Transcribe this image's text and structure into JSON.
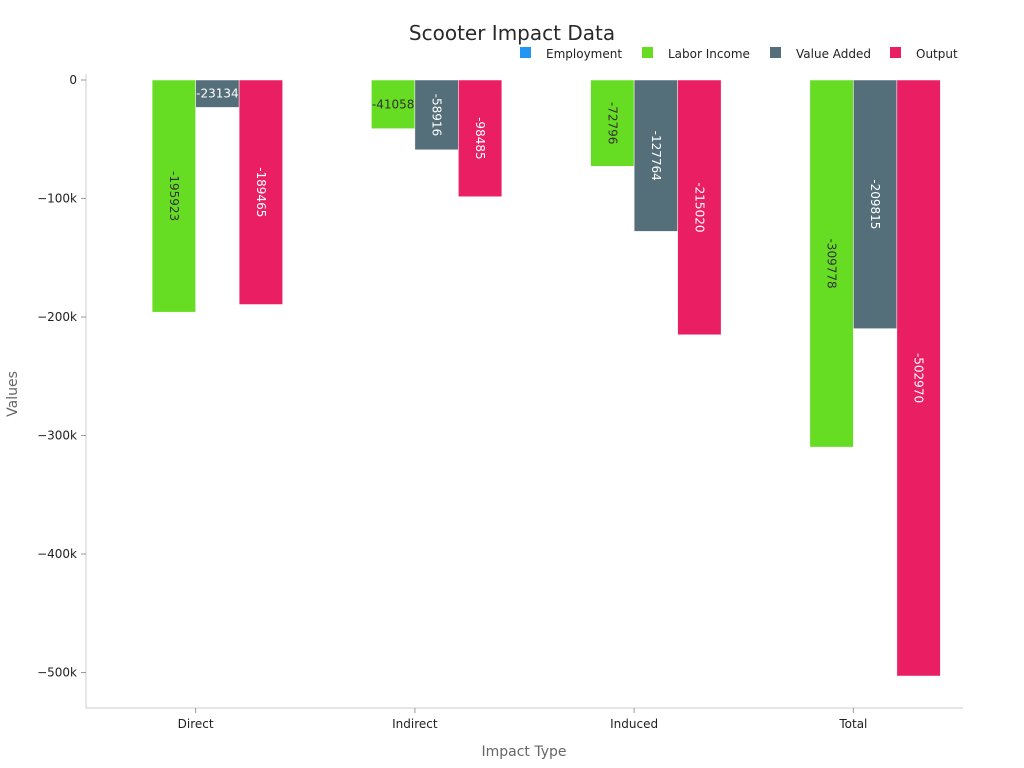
{
  "chart_data": {
    "type": "bar",
    "title": "Scooter Impact Data",
    "xlabel": "Impact Type",
    "ylabel": "Values",
    "categories": [
      "Direct",
      "Indirect",
      "Induced",
      "Total"
    ],
    "series": [
      {
        "name": "Employment",
        "color": "#2196f3",
        "values": [
          -1,
          -0.5,
          -0.8,
          -2.3
        ]
      },
      {
        "name": "Labor Income",
        "color": "#66dd22",
        "values": [
          -195923,
          -41058,
          -72796,
          -309778
        ]
      },
      {
        "name": "Value Added",
        "color": "#546e7a",
        "values": [
          -23134,
          -58916,
          -127764,
          -209815
        ]
      },
      {
        "name": "Output",
        "color": "#e91e63",
        "values": [
          -189465,
          -98485,
          -215020,
          -502970
        ]
      }
    ],
    "value_labels": {
      "Labor Income": [
        "-195923",
        "-41058",
        "-72796",
        "-309778"
      ],
      "Value Added": [
        "-23134",
        "-58916",
        "-127764",
        "-209815"
      ],
      "Output": [
        "-189465",
        "-98485",
        "-215020",
        "-502970"
      ]
    },
    "y_ticks": [
      0,
      -100000,
      -200000,
      -300000,
      -400000,
      -500000
    ],
    "y_tick_labels": [
      "0",
      "−100k",
      "−200k",
      "−300k",
      "−400k",
      "−500k"
    ],
    "ylim": [
      -530000,
      0
    ],
    "legend_position": "top-right",
    "grid": false
  }
}
